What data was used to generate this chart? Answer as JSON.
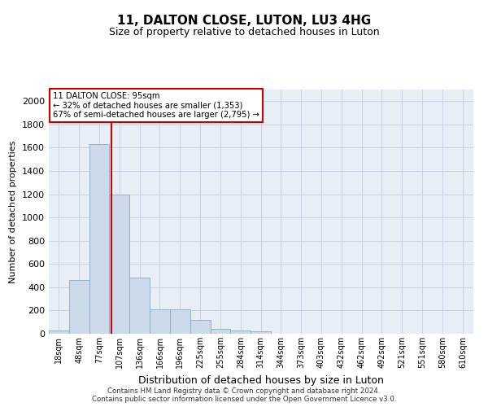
{
  "title": "11, DALTON CLOSE, LUTON, LU3 4HG",
  "subtitle": "Size of property relative to detached houses in Luton",
  "xlabel": "Distribution of detached houses by size in Luton",
  "ylabel": "Number of detached properties",
  "footnote1": "Contains HM Land Registry data © Crown copyright and database right 2024.",
  "footnote2": "Contains public sector information licensed under the Open Government Licence v3.0.",
  "bar_color": "#ccd9ea",
  "bar_edge_color": "#8aaabf",
  "vline_color": "#cc0000",
  "vline_x": 95,
  "annotation_line1": "11 DALTON CLOSE: 95sqm",
  "annotation_line2": "← 32% of detached houses are smaller (1,353)",
  "annotation_line3": "67% of semi-detached houses are larger (2,795) →",
  "annotation_box_facecolor": "#ffffff",
  "annotation_box_edgecolor": "#cc0000",
  "categories": [
    "18sqm",
    "48sqm",
    "77sqm",
    "107sqm",
    "136sqm",
    "166sqm",
    "196sqm",
    "225sqm",
    "255sqm",
    "284sqm",
    "314sqm",
    "344sqm",
    "373sqm",
    "403sqm",
    "432sqm",
    "462sqm",
    "492sqm",
    "521sqm",
    "551sqm",
    "580sqm",
    "610sqm"
  ],
  "bin_edges": [
    3.5,
    33,
    62.5,
    92,
    121.5,
    151,
    180.5,
    210,
    239.5,
    269,
    298.5,
    328,
    357.5,
    387,
    416.5,
    446,
    475.5,
    505,
    534.5,
    564,
    593.5,
    624
  ],
  "values": [
    30,
    460,
    1630,
    1200,
    480,
    210,
    210,
    120,
    40,
    30,
    20,
    0,
    0,
    0,
    0,
    0,
    0,
    0,
    0,
    0,
    0
  ],
  "ylim": [
    0,
    2100
  ],
  "yticks": [
    0,
    200,
    400,
    600,
    800,
    1000,
    1200,
    1400,
    1600,
    1800,
    2000
  ],
  "grid_color": "#c8d4e4",
  "background_color": "#e8eef6",
  "title_fontsize": 11,
  "subtitle_fontsize": 9,
  "ylabel_fontsize": 8,
  "xlabel_fontsize": 9,
  "ytick_fontsize": 8,
  "xtick_fontsize": 7
}
